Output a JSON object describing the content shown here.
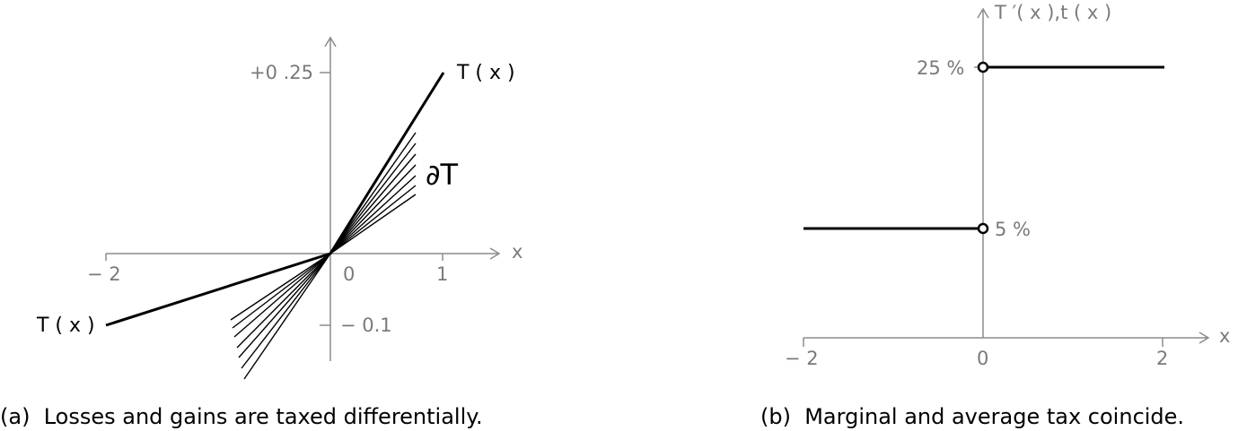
{
  "panel_a": {
    "caption": "(a)  Losses and gains are taxed differentially.",
    "x_axis_label": "x",
    "tick_x_neg2": "− 2",
    "tick_x_0": "0",
    "tick_x_1": "1",
    "tick_y_pos": "+0 .25",
    "tick_y_neg": "− 0.1",
    "graph_label_right": "T ( x )",
    "graph_label_left": "T ( x )",
    "subdifferential_label": "∂T",
    "gain_rate": 0.25,
    "loss_rate": 0.05,
    "subgradient_lines_count": 7
  },
  "panel_b": {
    "caption": "(b)  Marginal and average tax coincide.",
    "x_axis_label": "x",
    "y_axis_label": "T ′( x ),t ( x )",
    "tick_x_neg2": "− 2",
    "tick_x_0": "0",
    "tick_x_2": "2",
    "tick_y_25": "25 %",
    "tick_y_5": "5 %",
    "rate_gains_percent": 25,
    "rate_losses_percent": 5
  }
}
